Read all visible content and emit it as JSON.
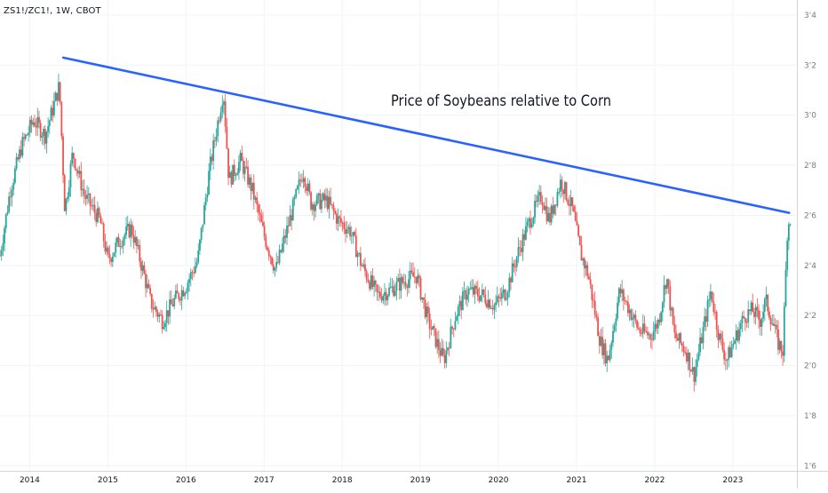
{
  "header": {
    "symbol": "ZS1!/ZC1!, 1W, CBOT"
  },
  "annotation": {
    "text": "Price of Soybeans relative to Corn"
  },
  "colors": {
    "up": "#26a69a",
    "down": "#ef5350",
    "trendline": "#2962ff",
    "grid": "#f0f3fa",
    "axis": "#d1d4dc"
  },
  "chart_data": {
    "type": "candlestick",
    "title": "",
    "x_ticks": [
      "2014",
      "2015",
      "2016",
      "2017",
      "2018",
      "2019",
      "2020",
      "2021",
      "2022",
      "2023"
    ],
    "y_ticks": [
      "1.6",
      "1.8",
      "2.0",
      "2.2",
      "2.4",
      "2.6",
      "2.8",
      "3.0",
      "3.2",
      "3.4"
    ],
    "y_tick_labels": [
      "1'6",
      "1'8",
      "2'0",
      "2'2",
      "2'4",
      "2'6",
      "2'8",
      "3'0",
      "3'2",
      "3'4"
    ],
    "ylim": [
      1.58,
      3.46
    ],
    "xlim": [
      2013.62,
      2023.82
    ],
    "grid": true,
    "trendline": {
      "start": {
        "x": 2014.43,
        "y": 3.23
      },
      "end": {
        "x": 2023.72,
        "y": 2.61
      }
    },
    "close_path": [
      [
        2013.62,
        2.44
      ],
      [
        2013.75,
        2.7
      ],
      [
        2013.9,
        2.88
      ],
      [
        2014.05,
        2.98
      ],
      [
        2014.2,
        2.92
      ],
      [
        2014.38,
        3.12
      ],
      [
        2014.45,
        2.62
      ],
      [
        2014.55,
        2.85
      ],
      [
        2014.7,
        2.68
      ],
      [
        2014.9,
        2.58
      ],
      [
        2015.0,
        2.42
      ],
      [
        2015.15,
        2.5
      ],
      [
        2015.3,
        2.55
      ],
      [
        2015.45,
        2.38
      ],
      [
        2015.55,
        2.25
      ],
      [
        2015.7,
        2.18
      ],
      [
        2015.85,
        2.26
      ],
      [
        2016.0,
        2.32
      ],
      [
        2016.15,
        2.42
      ],
      [
        2016.3,
        2.78
      ],
      [
        2016.48,
        3.1
      ],
      [
        2016.55,
        2.74
      ],
      [
        2016.7,
        2.82
      ],
      [
        2016.85,
        2.7
      ],
      [
        2017.0,
        2.52
      ],
      [
        2017.15,
        2.38
      ],
      [
        2017.3,
        2.55
      ],
      [
        2017.5,
        2.78
      ],
      [
        2017.6,
        2.65
      ],
      [
        2017.8,
        2.66
      ],
      [
        2017.95,
        2.58
      ],
      [
        2018.1,
        2.54
      ],
      [
        2018.25,
        2.4
      ],
      [
        2018.45,
        2.28
      ],
      [
        2018.6,
        2.3
      ],
      [
        2018.8,
        2.34
      ],
      [
        2018.95,
        2.36
      ],
      [
        2019.1,
        2.18
      ],
      [
        2019.3,
        2.02
      ],
      [
        2019.45,
        2.2
      ],
      [
        2019.6,
        2.3
      ],
      [
        2019.8,
        2.28
      ],
      [
        2019.95,
        2.24
      ],
      [
        2020.1,
        2.3
      ],
      [
        2020.25,
        2.45
      ],
      [
        2020.4,
        2.58
      ],
      [
        2020.55,
        2.68
      ],
      [
        2020.65,
        2.58
      ],
      [
        2020.8,
        2.74
      ],
      [
        2020.95,
        2.62
      ],
      [
        2021.05,
        2.45
      ],
      [
        2021.15,
        2.36
      ],
      [
        2021.3,
        2.1
      ],
      [
        2021.4,
        2.02
      ],
      [
        2021.55,
        2.3
      ],
      [
        2021.65,
        2.24
      ],
      [
        2021.8,
        2.14
      ],
      [
        2021.95,
        2.12
      ],
      [
        2022.05,
        2.18
      ],
      [
        2022.15,
        2.36
      ],
      [
        2022.25,
        2.12
      ],
      [
        2022.4,
        2.06
      ],
      [
        2022.5,
        1.96
      ],
      [
        2022.62,
        2.14
      ],
      [
        2022.72,
        2.3
      ],
      [
        2022.82,
        2.12
      ],
      [
        2022.92,
        2.02
      ],
      [
        2023.02,
        2.1
      ],
      [
        2023.15,
        2.2
      ],
      [
        2023.25,
        2.22
      ],
      [
        2023.35,
        2.18
      ],
      [
        2023.42,
        2.26
      ],
      [
        2023.52,
        2.16
      ],
      [
        2023.58,
        2.09
      ],
      [
        2023.64,
        2.06
      ],
      [
        2023.7,
        2.56
      ],
      [
        2023.75,
        2.6
      ]
    ]
  }
}
